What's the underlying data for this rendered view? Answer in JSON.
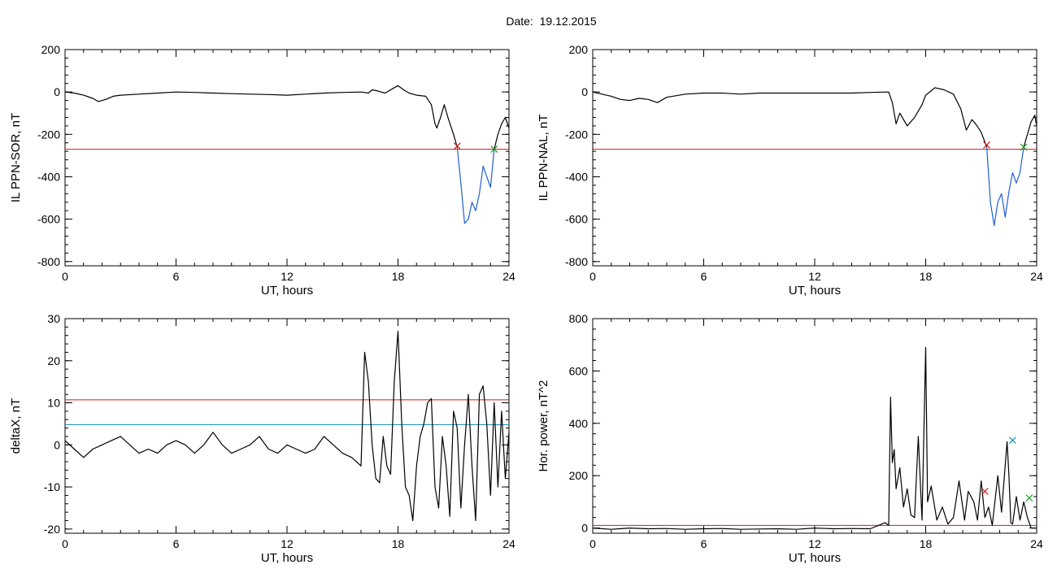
{
  "header": {
    "date_label": "Date:",
    "date_value": "19.12.2015"
  },
  "colors": {
    "trace": "#000000",
    "highlight": "#1f5fd0",
    "threshold": "#d01818",
    "threshold2": "#1890b8",
    "start_marker": "#d01818",
    "end_marker": "#20a020",
    "peak_marker": "#1890b8"
  },
  "chart_data": [
    {
      "type": "line",
      "xlabel": "UT, hours",
      "ylabel": "IL PPN-SOR, nT",
      "xlim": [
        0,
        24
      ],
      "ylim": [
        -820,
        200
      ],
      "xticks": [
        0,
        6,
        12,
        18,
        24
      ],
      "yticks": [
        200,
        0,
        -200,
        -400,
        -600,
        -800
      ],
      "series": [
        {
          "x": [
            0,
            0.5,
            1,
            1.5,
            1.8,
            2.2,
            2.6,
            3,
            4,
            5,
            6,
            7,
            8,
            9,
            10,
            11,
            12,
            13,
            14,
            15,
            16,
            16.4,
            16.6,
            16.9,
            17.3,
            17.7,
            18,
            18.3,
            18.6,
            18.8,
            19,
            19.5,
            19.8,
            20,
            20.1,
            20.3,
            20.5,
            20.7,
            21,
            21.2
          ],
          "y": [
            0,
            -5,
            -15,
            -30,
            -45,
            -35,
            -20,
            -15,
            -10,
            -5,
            0,
            -2,
            -5,
            -8,
            -10,
            -12,
            -15,
            -10,
            -5,
            -2,
            0,
            -5,
            10,
            5,
            -5,
            15,
            30,
            10,
            -5,
            -10,
            -15,
            -20,
            -60,
            -150,
            -170,
            -120,
            -60,
            -120,
            -200,
            -260
          ]
        },
        {
          "x": [
            21.2,
            21.4,
            21.6,
            21.8,
            22,
            22.2,
            22.4,
            22.6,
            22.8,
            23,
            23.2
          ],
          "y": [
            -260,
            -430,
            -620,
            -600,
            -520,
            -560,
            -480,
            -350,
            -400,
            -450,
            -270
          ]
        },
        {
          "x": [
            23.2,
            23.4,
            23.6,
            23.8,
            24
          ],
          "y": [
            -270,
            -200,
            -150,
            -120,
            -170
          ]
        }
      ],
      "threshold": -270,
      "markers": [
        {
          "x": 21.2,
          "y": -255,
          "kind": "start"
        },
        {
          "x": 23.2,
          "y": -270,
          "kind": "end"
        }
      ]
    },
    {
      "type": "line",
      "xlabel": "UT, hours",
      "ylabel": "IL PPN-NAL, nT",
      "xlim": [
        0,
        24
      ],
      "ylim": [
        -820,
        200
      ],
      "xticks": [
        0,
        6,
        12,
        18,
        24
      ],
      "yticks": [
        200,
        0,
        -200,
        -400,
        -600,
        -800
      ],
      "series": [
        {
          "x": [
            0,
            0.5,
            1,
            1.5,
            2,
            2.5,
            3,
            3.5,
            4,
            5,
            6,
            7,
            8,
            9,
            10,
            11,
            12,
            13,
            14,
            15,
            16,
            16.2,
            16.4,
            16.6,
            17,
            17.4,
            17.8,
            18,
            18.5,
            19,
            19.5,
            19.9,
            20.2,
            20.5,
            20.7,
            21,
            21.3
          ],
          "y": [
            0,
            -10,
            -20,
            -35,
            -40,
            -30,
            -35,
            -50,
            -25,
            -10,
            -5,
            -5,
            -10,
            -5,
            -5,
            -5,
            -5,
            -5,
            -5,
            -2,
            0,
            -50,
            -150,
            -100,
            -160,
            -120,
            -60,
            -15,
            20,
            10,
            -10,
            -80,
            -180,
            -130,
            -150,
            -190,
            -260
          ]
        },
        {
          "x": [
            21.3,
            21.5,
            21.7,
            21.9,
            22.1,
            22.3,
            22.5,
            22.7,
            22.9,
            23.1,
            23.3
          ],
          "y": [
            -260,
            -520,
            -630,
            -520,
            -480,
            -590,
            -470,
            -380,
            -430,
            -380,
            -260
          ]
        },
        {
          "x": [
            23.3,
            23.5,
            23.7,
            23.9,
            24
          ],
          "y": [
            -260,
            -200,
            -140,
            -110,
            -160
          ]
        }
      ],
      "threshold": -270,
      "markers": [
        {
          "x": 21.3,
          "y": -250,
          "kind": "start"
        },
        {
          "x": 23.3,
          "y": -260,
          "kind": "end"
        }
      ]
    },
    {
      "type": "line",
      "xlabel": "UT, hours",
      "ylabel": "deltaX, nT",
      "xlim": [
        0,
        24
      ],
      "ylim": [
        -21,
        30
      ],
      "xticks": [
        0,
        6,
        12,
        18,
        24
      ],
      "yticks": [
        30,
        20,
        10,
        0,
        -10,
        -20
      ],
      "series": [
        {
          "x": [
            0,
            0.5,
            1,
            1.5,
            2,
            2.5,
            3,
            3.5,
            4,
            4.5,
            5,
            5.5,
            6,
            6.5,
            7,
            7.5,
            8,
            8.5,
            9,
            9.5,
            10,
            10.5,
            11,
            11.5,
            12,
            12.5,
            13,
            13.5,
            14,
            14.5,
            15,
            15.5,
            16,
            16.2,
            16.4,
            16.6,
            16.8,
            17,
            17.2,
            17.4,
            17.6,
            17.8,
            18,
            18.2,
            18.4,
            18.6,
            18.8,
            19,
            19.2,
            19.4,
            19.6,
            19.8,
            20,
            20.2,
            20.4,
            20.6,
            20.8,
            21,
            21.2,
            21.4,
            21.6,
            21.8,
            22,
            22.2,
            22.4,
            22.6,
            22.8,
            23,
            23.2,
            23.4,
            23.6,
            23.8,
            24
          ],
          "y": [
            1,
            -1,
            -3,
            -1,
            0,
            1,
            2,
            0,
            -2,
            -1,
            -2,
            0,
            1,
            0,
            -2,
            0,
            3,
            0,
            -2,
            -1,
            0,
            2,
            -1,
            -2,
            0,
            -1,
            -2,
            -1,
            2,
            0,
            -2,
            -3,
            -5,
            22,
            15,
            0,
            -8,
            -9,
            2,
            -5,
            -7,
            15,
            27,
            5,
            -10,
            -12,
            -18,
            -5,
            2,
            5,
            10,
            11,
            -10,
            -15,
            2,
            -5,
            -17,
            8,
            4,
            -15,
            0,
            12,
            -5,
            -18,
            12,
            14,
            5,
            -12,
            10,
            -10,
            8,
            -8,
            3
          ]
        }
      ],
      "threshold": 10.7,
      "threshold2": 4.8,
      "markers": []
    },
    {
      "type": "line",
      "xlabel": "UT, hours",
      "ylabel": "Hor. power, nT^2",
      "xlim": [
        0,
        24
      ],
      "ylim": [
        -20,
        800
      ],
      "xticks": [
        0,
        6,
        12,
        18,
        24
      ],
      "yticks": [
        800,
        600,
        400,
        200,
        0
      ],
      "series": [
        {
          "x": [
            0,
            1,
            2,
            3,
            4,
            5,
            6,
            7,
            8,
            9,
            10,
            11,
            12,
            13,
            14,
            15,
            15.8,
            16,
            16.1,
            16.2,
            16.3,
            16.4,
            16.6,
            16.8,
            17,
            17.2,
            17.4,
            17.6,
            17.8,
            18,
            18.1,
            18.3,
            18.6,
            18.9,
            19.2,
            19.5,
            19.8,
            20.1,
            20.3,
            20.6,
            20.8,
            21,
            21.2,
            21.4,
            21.6,
            21.9,
            22.1,
            22.4,
            22.5,
            22.6,
            22.7,
            22.9,
            23.1,
            23.3,
            23.5,
            23.7,
            23.9,
            24
          ],
          "y": [
            0,
            -5,
            0,
            -3,
            -2,
            -5,
            -3,
            -2,
            -5,
            -4,
            -3,
            -5,
            0,
            -3,
            -2,
            -3,
            20,
            10,
            500,
            250,
            300,
            150,
            230,
            80,
            150,
            50,
            40,
            350,
            30,
            690,
            100,
            160,
            30,
            80,
            15,
            40,
            180,
            30,
            140,
            100,
            30,
            180,
            40,
            80,
            10,
            200,
            60,
            330,
            200,
            20,
            15,
            120,
            30,
            100,
            40,
            0,
            0,
            0
          ]
        }
      ],
      "threshold": 10,
      "markers": [
        {
          "x": 21.2,
          "y": 140,
          "kind": "start"
        },
        {
          "x": 22.7,
          "y": 335,
          "kind": "peak"
        },
        {
          "x": 23.6,
          "y": 115,
          "kind": "end"
        }
      ]
    }
  ]
}
